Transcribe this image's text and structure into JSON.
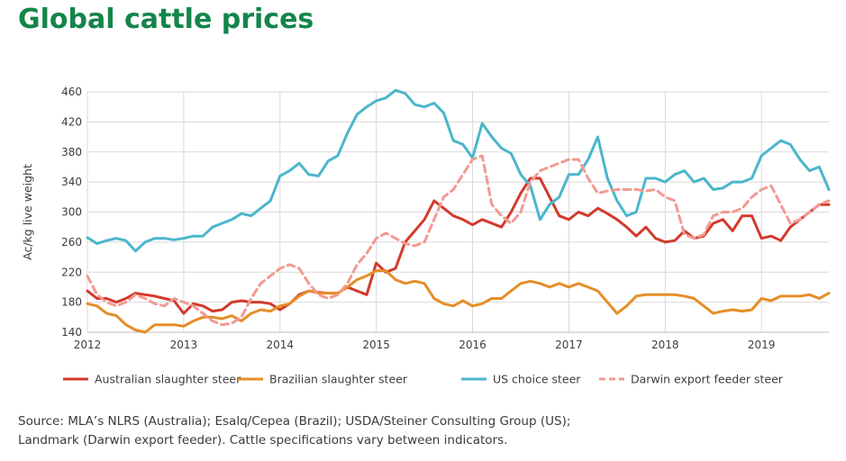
{
  "header": {
    "title": "Global cattle prices"
  },
  "source": {
    "line1": "Source: MLA’s NLRS (Australia); Esalq/Cepea (Brazil); USDA/Steiner Consulting Group (US);",
    "line2": "Landmark (Darwin export feeder). Cattle specifications vary between indicators."
  },
  "colors": {
    "australian": "#d23a2c",
    "brazilian": "#e58e27",
    "us": "#4bb6cc",
    "darwin": "#f29a92",
    "grid": "#d9d9d9",
    "axis": "#bfbfbf",
    "title": "#14854a"
  },
  "chart_data": {
    "type": "line",
    "title": "",
    "xlabel": "",
    "ylabel": "Ac/kg live weight",
    "xlim": [
      2012,
      2019.7
    ],
    "ylim": [
      140,
      460
    ],
    "yticks": [
      140,
      180,
      220,
      260,
      300,
      340,
      380,
      420,
      460
    ],
    "xticks": [
      "2012",
      "2013",
      "2014",
      "2015",
      "2016",
      "2017",
      "2018",
      "2019"
    ],
    "grid": "vertical at years, horizontal at y ticks",
    "legend_position": "bottom",
    "series": [
      {
        "name": "Australian slaughter steer",
        "style": "solid",
        "x": [
          2012.0,
          2012.1,
          2012.2,
          2012.3,
          2012.4,
          2012.5,
          2012.6,
          2012.7,
          2012.8,
          2012.9,
          2013.0,
          2013.1,
          2013.2,
          2013.3,
          2013.4,
          2013.5,
          2013.6,
          2013.7,
          2013.8,
          2013.9,
          2014.0,
          2014.1,
          2014.2,
          2014.3,
          2014.4,
          2014.5,
          2014.6,
          2014.7,
          2014.8,
          2014.9,
          2015.0,
          2015.1,
          2015.2,
          2015.3,
          2015.4,
          2015.5,
          2015.6,
          2015.7,
          2015.8,
          2015.9,
          2016.0,
          2016.1,
          2016.2,
          2016.3,
          2016.4,
          2016.5,
          2016.6,
          2016.7,
          2016.8,
          2016.9,
          2017.0,
          2017.1,
          2017.2,
          2017.3,
          2017.4,
          2017.5,
          2017.6,
          2017.7,
          2017.8,
          2017.9,
          2018.0,
          2018.1,
          2018.2,
          2018.3,
          2018.4,
          2018.5,
          2018.6,
          2018.7,
          2018.8,
          2018.9,
          2019.0,
          2019.1,
          2019.2,
          2019.3,
          2019.4,
          2019.5,
          2019.6,
          2019.7
        ],
        "values": [
          195,
          185,
          185,
          180,
          185,
          192,
          190,
          188,
          185,
          182,
          165,
          178,
          175,
          168,
          170,
          180,
          182,
          180,
          180,
          178,
          170,
          178,
          190,
          195,
          193,
          192,
          192,
          200,
          195,
          190,
          232,
          220,
          225,
          260,
          275,
          290,
          315,
          305,
          295,
          290,
          283,
          290,
          285,
          280,
          300,
          325,
          345,
          345,
          320,
          295,
          290,
          300,
          295,
          305,
          298,
          290,
          280,
          268,
          280,
          265,
          260,
          262,
          275,
          265,
          268,
          285,
          290,
          275,
          295,
          295,
          265,
          268,
          262,
          280,
          290,
          300,
          310,
          310
        ]
      },
      {
        "name": "Brazilian slaughter steer",
        "style": "solid",
        "x": [
          2012.0,
          2012.1,
          2012.2,
          2012.3,
          2012.4,
          2012.5,
          2012.6,
          2012.7,
          2012.8,
          2012.9,
          2013.0,
          2013.1,
          2013.2,
          2013.3,
          2013.4,
          2013.5,
          2013.6,
          2013.7,
          2013.8,
          2013.9,
          2014.0,
          2014.1,
          2014.2,
          2014.3,
          2014.4,
          2014.5,
          2014.6,
          2014.7,
          2014.8,
          2014.9,
          2015.0,
          2015.1,
          2015.2,
          2015.3,
          2015.4,
          2015.5,
          2015.6,
          2015.7,
          2015.8,
          2015.9,
          2016.0,
          2016.1,
          2016.2,
          2016.3,
          2016.4,
          2016.5,
          2016.6,
          2016.7,
          2016.8,
          2016.9,
          2017.0,
          2017.1,
          2017.2,
          2017.3,
          2017.4,
          2017.5,
          2017.6,
          2017.7,
          2017.8,
          2017.9,
          2018.0,
          2018.1,
          2018.2,
          2018.3,
          2018.4,
          2018.5,
          2018.6,
          2018.7,
          2018.8,
          2018.9,
          2019.0,
          2019.1,
          2019.2,
          2019.3,
          2019.4,
          2019.5,
          2019.6,
          2019.7
        ],
        "values": [
          178,
          175,
          165,
          162,
          150,
          143,
          140,
          150,
          150,
          150,
          148,
          155,
          160,
          160,
          158,
          162,
          155,
          165,
          170,
          168,
          175,
          178,
          188,
          195,
          192,
          192,
          192,
          200,
          210,
          215,
          222,
          222,
          210,
          205,
          208,
          205,
          185,
          178,
          175,
          182,
          175,
          178,
          185,
          185,
          195,
          205,
          208,
          205,
          200,
          205,
          200,
          205,
          200,
          195,
          180,
          165,
          175,
          188,
          190,
          190,
          190,
          190,
          188,
          185,
          175,
          165,
          168,
          170,
          168,
          170,
          185,
          182,
          188,
          188,
          188,
          190,
          185,
          192
        ]
      },
      {
        "name": "US choice steer",
        "style": "solid",
        "x": [
          2012.0,
          2012.1,
          2012.2,
          2012.3,
          2012.4,
          2012.5,
          2012.6,
          2012.7,
          2012.8,
          2012.9,
          2013.0,
          2013.1,
          2013.2,
          2013.3,
          2013.4,
          2013.5,
          2013.6,
          2013.7,
          2013.8,
          2013.9,
          2014.0,
          2014.1,
          2014.2,
          2014.3,
          2014.4,
          2014.5,
          2014.6,
          2014.7,
          2014.8,
          2014.9,
          2015.0,
          2015.1,
          2015.2,
          2015.3,
          2015.4,
          2015.5,
          2015.6,
          2015.7,
          2015.8,
          2015.9,
          2016.0,
          2016.1,
          2016.2,
          2016.3,
          2016.4,
          2016.5,
          2016.6,
          2016.7,
          2016.8,
          2016.9,
          2017.0,
          2017.1,
          2017.2,
          2017.3,
          2017.4,
          2017.5,
          2017.6,
          2017.7,
          2017.8,
          2017.9,
          2018.0,
          2018.1,
          2018.2,
          2018.3,
          2018.4,
          2018.5,
          2018.6,
          2018.7,
          2018.8,
          2018.9,
          2019.0,
          2019.1,
          2019.2,
          2019.3,
          2019.4,
          2019.5,
          2019.6,
          2019.7
        ],
        "values": [
          266,
          258,
          262,
          265,
          262,
          248,
          260,
          265,
          265,
          263,
          265,
          268,
          268,
          280,
          285,
          290,
          298,
          295,
          305,
          315,
          348,
          355,
          365,
          350,
          348,
          368,
          375,
          405,
          430,
          440,
          448,
          452,
          462,
          458,
          443,
          440,
          445,
          432,
          395,
          390,
          372,
          418,
          400,
          385,
          378,
          350,
          335,
          290,
          310,
          320,
          350,
          350,
          370,
          400,
          345,
          315,
          295,
          300,
          345,
          345,
          340,
          350,
          355,
          340,
          345,
          330,
          332,
          340,
          340,
          345,
          375,
          385,
          395,
          390,
          370,
          355,
          360,
          330
        ]
      },
      {
        "name": "Darwin export feeder steer",
        "style": "dashed",
        "x": [
          2012.0,
          2012.1,
          2012.2,
          2012.3,
          2012.4,
          2012.5,
          2012.6,
          2012.7,
          2012.8,
          2012.9,
          2013.0,
          2013.1,
          2013.2,
          2013.3,
          2013.4,
          2013.5,
          2013.6,
          2013.7,
          2013.8,
          2013.9,
          2014.0,
          2014.1,
          2014.2,
          2014.3,
          2014.4,
          2014.5,
          2014.6,
          2014.7,
          2014.8,
          2014.9,
          2015.0,
          2015.1,
          2015.2,
          2015.3,
          2015.4,
          2015.5,
          2015.6,
          2015.7,
          2015.8,
          2015.9,
          2016.0,
          2016.1,
          2016.2,
          2016.3,
          2016.4,
          2016.5,
          2016.6,
          2016.7,
          2016.8,
          2016.9,
          2017.0,
          2017.1,
          2017.2,
          2017.3,
          2017.4,
          2017.5,
          2017.6,
          2017.7,
          2017.8,
          2017.9,
          2018.0,
          2018.1,
          2018.2,
          2018.3,
          2018.4,
          2018.5,
          2018.6,
          2018.7,
          2018.8,
          2018.9,
          2019.0,
          2019.1,
          2019.2,
          2019.3,
          2019.4,
          2019.5,
          2019.6,
          2019.7
        ],
        "values": [
          215,
          190,
          180,
          175,
          180,
          190,
          185,
          178,
          175,
          185,
          180,
          175,
          165,
          155,
          150,
          152,
          160,
          185,
          205,
          215,
          225,
          230,
          225,
          205,
          190,
          185,
          190,
          205,
          230,
          245,
          265,
          272,
          265,
          258,
          255,
          260,
          290,
          320,
          330,
          350,
          370,
          375,
          310,
          295,
          285,
          300,
          340,
          355,
          360,
          365,
          370,
          370,
          345,
          325,
          328,
          330,
          330,
          330,
          328,
          330,
          320,
          315,
          270,
          265,
          270,
          295,
          300,
          300,
          305,
          320,
          330,
          335,
          310,
          285,
          290,
          300,
          310,
          315
        ]
      }
    ]
  }
}
